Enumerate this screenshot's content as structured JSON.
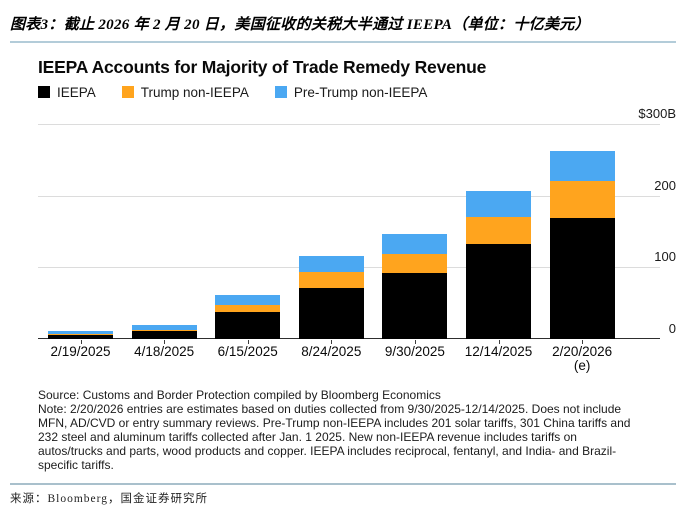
{
  "header": {
    "title": "图表3：截止 2026 年 2 月 20 日，美国征收的关税大半通过 IEEPA（单位：十亿美元）"
  },
  "chart_data": {
    "type": "bar",
    "stacked": true,
    "title": "IEEPA Accounts for Majority of Trade Remedy Revenue",
    "categories": [
      "2/19/2025",
      "4/18/2025",
      "6/15/2025",
      "8/24/2025",
      "9/30/2025",
      "12/14/2025",
      "2/20/2026 (e)"
    ],
    "x_labels": [
      {
        "label": "2/19/2025",
        "sub": ""
      },
      {
        "label": "4/18/2025",
        "sub": ""
      },
      {
        "label": "6/15/2025",
        "sub": ""
      },
      {
        "label": "8/24/2025",
        "sub": ""
      },
      {
        "label": "9/30/2025",
        "sub": ""
      },
      {
        "label": "12/14/2025",
        "sub": ""
      },
      {
        "label": "2/20/2026",
        "sub": "(e)"
      }
    ],
    "series": [
      {
        "name": "IEEPA",
        "color": "#000000",
        "values": [
          7,
          12,
          37,
          71,
          92,
          132,
          169
        ]
      },
      {
        "name": "Trump non-IEEPA",
        "color": "#FFA41E",
        "values": [
          0.5,
          1,
          11,
          23,
          27,
          38,
          51
        ]
      },
      {
        "name": "Pre-Trump non-IEEPA",
        "color": "#4BA8F2",
        "values": [
          4,
          7,
          13,
          22,
          27,
          36,
          42
        ]
      }
    ],
    "unit": "billion USD",
    "ylim": [
      0,
      300
    ],
    "yticks": [
      0,
      100,
      200,
      300
    ],
    "ytick_labels": [
      "0",
      "100",
      "200",
      "$300B"
    ],
    "grid": true,
    "legend_position": "top-left"
  },
  "notes": {
    "source": "Source: Customs and Border Protection compiled by Bloomberg Economics",
    "note": "Note: 2/20/2026 entries are estimates based on duties collected from 9/30/2025-12/14/2025. Does not include MFN, AD/CVD or entry summary reviews. Pre-Trump non-IEEPA includes 201 solar tariffs, 301 China tariffs and 232 steel and aluminum tariffs collected after Jan. 1 2025. New non-IEEPA revenue includes tariffs on autos/trucks and parts, wood products and copper. IEEPA includes reciprocal, fentanyl, and India- and Brazil-specific tariffs."
  },
  "footer": {
    "source": "来源：Bloomberg，国金证券研究所"
  }
}
